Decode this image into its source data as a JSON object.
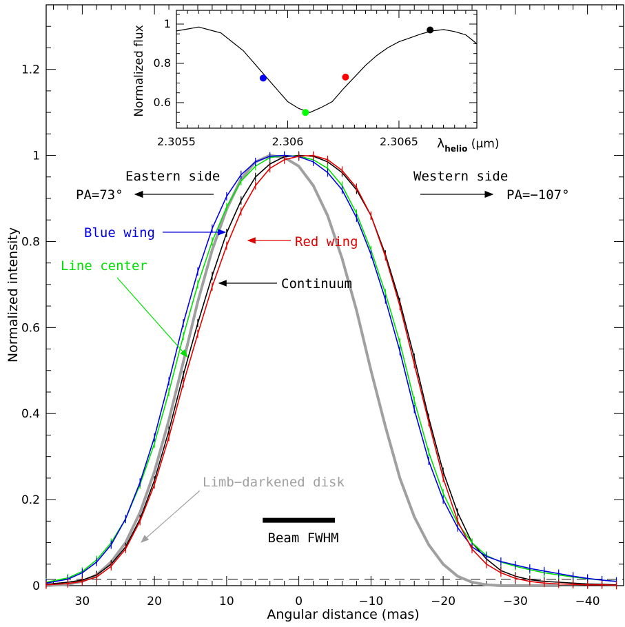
{
  "chart_data": [
    {
      "type": "line",
      "xlabel": "Angular distance (mas)",
      "ylabel": "Normalized intensity",
      "xlim": [
        35,
        -45
      ],
      "ylim": [
        0,
        1.35
      ],
      "x_ticks": [
        30,
        20,
        10,
        0,
        -10,
        -20,
        -30,
        -40
      ],
      "x_tick_labels": [
        "30",
        "20",
        "10",
        "0",
        "−10",
        "−20",
        "−30",
        "−40"
      ],
      "y_ticks": [
        0,
        0.2,
        0.4,
        0.6,
        0.8,
        1,
        1.2
      ],
      "y_tick_labels": [
        "0",
        "0.2",
        "0.4",
        "0.6",
        "0.8",
        "1",
        "1.2"
      ],
      "grid": false,
      "dashed_level": 0.015,
      "series": [
        {
          "name": "Limb−darkened disk",
          "color": "#a0a0a0",
          "width": 4,
          "x": [
            35,
            32,
            30,
            28,
            26,
            24,
            22,
            20,
            18,
            16,
            14,
            12,
            10,
            8,
            6,
            4,
            2,
            0,
            -2,
            -4,
            -6,
            -8,
            -10,
            -12,
            -14,
            -16,
            -18,
            -20,
            -22,
            -24,
            -26,
            -28,
            -30,
            -32,
            -34,
            -36
          ],
          "y": [
            0,
            0.003,
            0.01,
            0.025,
            0.055,
            0.1,
            0.17,
            0.265,
            0.385,
            0.52,
            0.66,
            0.78,
            0.875,
            0.945,
            0.985,
            1.0,
            0.995,
            0.975,
            0.93,
            0.86,
            0.76,
            0.64,
            0.5,
            0.37,
            0.25,
            0.16,
            0.095,
            0.05,
            0.022,
            0.008,
            0.002,
            0,
            0,
            0,
            0,
            0
          ]
        },
        {
          "name": "Continuum",
          "color": "#000000",
          "width": 1.6,
          "x": [
            35,
            32,
            30,
            28,
            26,
            24,
            22,
            20,
            18,
            16,
            14,
            12,
            10,
            8,
            6,
            4,
            2,
            0,
            -2,
            -4,
            -6,
            -8,
            -10,
            -12,
            -14,
            -16,
            -18,
            -20,
            -22,
            -24,
            -26,
            -28,
            -30,
            -32,
            -34,
            -36,
            -38,
            -40,
            -42,
            -44
          ],
          "y": [
            0.003,
            0.008,
            0.013,
            0.025,
            0.05,
            0.09,
            0.155,
            0.245,
            0.36,
            0.49,
            0.61,
            0.72,
            0.82,
            0.895,
            0.95,
            0.98,
            0.997,
            1.0,
            0.998,
            0.985,
            0.96,
            0.92,
            0.86,
            0.77,
            0.66,
            0.53,
            0.39,
            0.265,
            0.17,
            0.1,
            0.062,
            0.035,
            0.022,
            0.014,
            0.01,
            0.008,
            0.006,
            0.004,
            0.003,
            0.002
          ]
        },
        {
          "name": "Line center",
          "color": "#00e000",
          "width": 1.6,
          "x": [
            35,
            32,
            30,
            28,
            26,
            24,
            22,
            20,
            18,
            16,
            14,
            12,
            10,
            8,
            6,
            4,
            2,
            0,
            -2,
            -4,
            -6,
            -8,
            -10,
            -12,
            -14,
            -16,
            -18,
            -20,
            -22,
            -24,
            -26,
            -28,
            -30,
            -32,
            -34,
            -36,
            -38,
            -40,
            -42,
            -44
          ],
          "y": [
            0.008,
            0.018,
            0.033,
            0.06,
            0.1,
            0.155,
            0.235,
            0.33,
            0.45,
            0.58,
            0.7,
            0.8,
            0.88,
            0.94,
            0.975,
            0.995,
            1.0,
            0.998,
            0.99,
            0.97,
            0.93,
            0.865,
            0.78,
            0.68,
            0.565,
            0.43,
            0.31,
            0.215,
            0.145,
            0.1,
            0.07,
            0.055,
            0.045,
            0.037,
            0.03,
            0.025,
            0.02,
            0.016,
            0.013,
            0.01
          ]
        },
        {
          "name": "Blue wing",
          "color": "#0000e0",
          "width": 1.6,
          "x": [
            35,
            32,
            30,
            28,
            26,
            24,
            22,
            20,
            18,
            16,
            14,
            12,
            10,
            8,
            6,
            4,
            2,
            0,
            -2,
            -4,
            -6,
            -8,
            -10,
            -12,
            -14,
            -16,
            -18,
            -20,
            -22,
            -24,
            -26,
            -28,
            -30,
            -32,
            -34,
            -36,
            -38,
            -40,
            -42,
            -44
          ],
          "y": [
            0.006,
            0.015,
            0.03,
            0.055,
            0.095,
            0.155,
            0.24,
            0.345,
            0.475,
            0.61,
            0.73,
            0.83,
            0.905,
            0.955,
            0.985,
            0.998,
            1.0,
            0.997,
            0.985,
            0.96,
            0.92,
            0.855,
            0.77,
            0.665,
            0.545,
            0.41,
            0.29,
            0.2,
            0.135,
            0.09,
            0.068,
            0.056,
            0.048,
            0.04,
            0.034,
            0.028,
            0.022,
            0.017,
            0.013,
            0.01
          ]
        },
        {
          "name": "Red wing",
          "color": "#e00000",
          "width": 1.6,
          "x": [
            35,
            32,
            30,
            28,
            26,
            24,
            22,
            20,
            18,
            16,
            14,
            12,
            10,
            8,
            6,
            4,
            2,
            0,
            -2,
            -4,
            -6,
            -8,
            -10,
            -12,
            -14,
            -16,
            -18,
            -20,
            -22,
            -24,
            -26,
            -28,
            -30,
            -32,
            -34,
            -36,
            -38,
            -40,
            -42,
            -44
          ],
          "y": [
            0.002,
            0.005,
            0.01,
            0.02,
            0.045,
            0.085,
            0.15,
            0.235,
            0.345,
            0.47,
            0.585,
            0.695,
            0.79,
            0.87,
            0.93,
            0.97,
            0.99,
            0.998,
            1.0,
            0.99,
            0.965,
            0.925,
            0.86,
            0.765,
            0.65,
            0.515,
            0.38,
            0.25,
            0.15,
            0.085,
            0.05,
            0.03,
            0.017,
            0.01,
            0.006,
            0.004,
            0.003,
            0.002,
            0.002,
            0.001
          ]
        }
      ],
      "annotations": {
        "eastern_side": "Eastern side",
        "western_side": "Western side",
        "pa_east": "PA=73°",
        "pa_west": "PA=−107°",
        "blue_wing": "Blue wing",
        "red_wing": "Red wing",
        "line_center": "Line center",
        "continuum": "Continuum",
        "limb_darkened": "Limb−darkened disk",
        "beam": "Beam FWHM",
        "beam_range": [
          5,
          -5
        ],
        "beam_level": 0.152
      }
    },
    {
      "type": "line",
      "xlabel": "λhelio (μm)",
      "xlabel_main": "λ",
      "xlabel_sub": "helio",
      "xlabel_unit": " (μm)",
      "ylabel": "Normalized flux",
      "xlim": [
        2.3055,
        2.30685
      ],
      "ylim": [
        0.47,
        1.07
      ],
      "x_ticks": [
        2.3055,
        2.306,
        2.3065
      ],
      "x_tick_labels": [
        "2.3055",
        "2.306",
        "2.3065"
      ],
      "y_ticks": [
        0.6,
        0.8,
        1
      ],
      "y_tick_labels": [
        "0.6",
        "0.8",
        "1"
      ],
      "spectrum": {
        "x": [
          2.3055,
          2.30555,
          2.3056,
          2.30565,
          2.3057,
          2.30575,
          2.3058,
          2.30585,
          2.3059,
          2.30595,
          2.306,
          2.30605,
          2.3061,
          2.30615,
          2.3062,
          2.30625,
          2.3063,
          2.30635,
          2.3064,
          2.30645,
          2.3065,
          2.30655,
          2.3066,
          2.30665,
          2.3067,
          2.30675,
          2.3068,
          2.30685
        ],
        "y": [
          0.965,
          0.975,
          0.985,
          0.97,
          0.955,
          0.91,
          0.865,
          0.8,
          0.735,
          0.67,
          0.605,
          0.57,
          0.55,
          0.575,
          0.605,
          0.67,
          0.73,
          0.79,
          0.84,
          0.88,
          0.91,
          0.93,
          0.95,
          0.965,
          0.972,
          0.962,
          0.945,
          0.9
        ]
      },
      "markers": [
        {
          "name": "Blue wing",
          "x": 2.30589,
          "y": 0.725,
          "color": "#0000ff"
        },
        {
          "name": "Line center",
          "x": 2.30608,
          "y": 0.55,
          "color": "#00ff00"
        },
        {
          "name": "Red wing",
          "x": 2.30626,
          "y": 0.73,
          "color": "#ff0000"
        },
        {
          "name": "Continuum",
          "x": 2.30664,
          "y": 0.97,
          "color": "#000000"
        }
      ]
    }
  ]
}
